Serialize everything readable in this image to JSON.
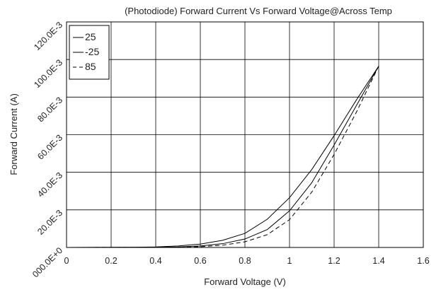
{
  "chart_data": {
    "type": "line",
    "title": "(Photodiode) Forward Current Vs Forward Voltage@Across Temp",
    "xlabel": "Forward Voltage (V)",
    "ylabel": "Forward Current (A)",
    "xlim": [
      0,
      1.6
    ],
    "ylim": [
      0,
      0.12
    ],
    "x_ticks": [
      0,
      0.2,
      0.4,
      0.6,
      0.8,
      1.0,
      1.2,
      1.4,
      1.6
    ],
    "x_tick_labels": [
      "0",
      "0.2",
      "0.4",
      "0.6",
      "0.8",
      "1",
      "1.2",
      "1.4",
      "1.6"
    ],
    "y_ticks": [
      0,
      0.02,
      0.04,
      0.06,
      0.08,
      0.1,
      0.12
    ],
    "y_tick_labels": [
      "000.0E+0",
      "20.0E-3",
      "40.0E-3",
      "60.0E-3",
      "80.0E-3",
      "100.0E-3",
      "120.0E-3"
    ],
    "grid": true,
    "legend_position": "top-left",
    "series": [
      {
        "name": "25",
        "style": "solid",
        "x": [
          0,
          0.3,
          0.4,
          0.5,
          0.6,
          0.7,
          0.8,
          0.9,
          1.0,
          1.1,
          1.2,
          1.3,
          1.4
        ],
        "y": [
          0,
          0.0001,
          0.0003,
          0.0008,
          0.0018,
          0.0038,
          0.0075,
          0.015,
          0.0265,
          0.0415,
          0.0595,
          0.0785,
          0.0965
        ]
      },
      {
        "name": "-25",
        "style": "solid",
        "x": [
          0,
          0.4,
          0.5,
          0.6,
          0.7,
          0.8,
          0.9,
          1.0,
          1.1,
          1.2,
          1.3,
          1.4
        ],
        "y": [
          0,
          0.0001,
          0.0003,
          0.0008,
          0.002,
          0.0045,
          0.0095,
          0.0195,
          0.0345,
          0.0545,
          0.0755,
          0.0965
        ]
      },
      {
        "name": "85",
        "style": "dashed",
        "x": [
          0,
          0.5,
          0.6,
          0.7,
          0.8,
          0.9,
          1.0,
          1.1,
          1.2,
          1.3,
          1.4
        ],
        "y": [
          0,
          0.0001,
          0.0004,
          0.0012,
          0.003,
          0.0068,
          0.0148,
          0.0295,
          0.0495,
          0.072,
          0.0965
        ]
      }
    ]
  }
}
